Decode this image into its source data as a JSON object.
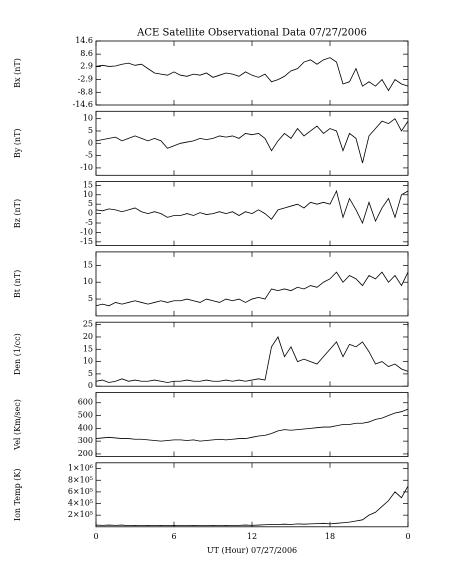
{
  "chart_data": [
    {
      "type": "line",
      "title": "ACE Satellite Observational Data   07/27/2006",
      "ylabel": "Bx (nT)",
      "color": "#000000",
      "x": [
        0,
        0.5,
        1,
        1.5,
        2,
        2.5,
        3,
        3.5,
        4,
        4.5,
        5,
        5.5,
        6,
        6.5,
        7,
        7.5,
        8,
        8.5,
        9,
        9.5,
        10,
        10.5,
        11,
        11.5,
        12,
        12.5,
        13,
        13.5,
        14,
        14.5,
        15,
        15.5,
        16,
        16.5,
        17,
        17.5,
        18,
        18.5,
        19,
        19.5,
        20,
        20.5,
        21,
        21.5,
        22,
        22.5,
        23,
        23.5,
        24
      ],
      "values": [
        3,
        3.5,
        3,
        3.2,
        4,
        4.5,
        3.5,
        4,
        2,
        0,
        -0.5,
        -1,
        0.5,
        -1,
        -1.5,
        -0.5,
        -1,
        0,
        -2,
        -1,
        0,
        -0.5,
        -1.5,
        0.5,
        -1,
        -2,
        -0.5,
        -4,
        -3,
        -1.5,
        1,
        2,
        5,
        6,
        4,
        6,
        7,
        5,
        -5,
        -4,
        2,
        -6,
        -4,
        -6,
        -3,
        -8,
        -3,
        -5,
        -6
      ],
      "ylim": [
        -14.6,
        14.6
      ],
      "yticks": [
        -14.6,
        -8.8,
        -2.9,
        2.9,
        8.6,
        14.6
      ]
    },
    {
      "type": "line",
      "ylabel": "By (nT)",
      "color": "#000000",
      "x": [
        0,
        0.5,
        1,
        1.5,
        2,
        2.5,
        3,
        3.5,
        4,
        4.5,
        5,
        5.5,
        6,
        6.5,
        7,
        7.5,
        8,
        8.5,
        9,
        9.5,
        10,
        10.5,
        11,
        11.5,
        12,
        12.5,
        13,
        13.5,
        14,
        14.5,
        15,
        15.5,
        16,
        16.5,
        17,
        17.5,
        18,
        18.5,
        19,
        19.5,
        20,
        20.5,
        21,
        21.5,
        22,
        22.5,
        23,
        23.5,
        24
      ],
      "values": [
        1,
        1.5,
        2,
        2.5,
        1,
        2,
        3,
        2,
        1,
        2,
        1,
        -2,
        -1,
        0,
        0.5,
        1,
        2,
        1.5,
        2,
        3,
        2.5,
        3,
        2,
        4,
        3.5,
        4,
        2,
        -3,
        1,
        4,
        2,
        6,
        3,
        5,
        7,
        4,
        6,
        5,
        -3,
        4,
        2,
        -8,
        3,
        6,
        9,
        8,
        10,
        5,
        9
      ],
      "ylim": [
        -13,
        13
      ],
      "yticks": [
        -10,
        -5,
        0,
        5,
        10
      ]
    },
    {
      "type": "line",
      "ylabel": "Bz (nT)",
      "color": "#000000",
      "x": [
        0,
        0.5,
        1,
        1.5,
        2,
        2.5,
        3,
        3.5,
        4,
        4.5,
        5,
        5.5,
        6,
        6.5,
        7,
        7.5,
        8,
        8.5,
        9,
        9.5,
        10,
        10.5,
        11,
        11.5,
        12,
        12.5,
        13,
        13.5,
        14,
        14.5,
        15,
        15.5,
        16,
        16.5,
        17,
        17.5,
        18,
        18.5,
        19,
        19.5,
        20,
        20.5,
        21,
        21.5,
        22,
        22.5,
        23,
        23.5,
        24
      ],
      "values": [
        2,
        1.5,
        2.5,
        2,
        1,
        2,
        3,
        1,
        0,
        1,
        0,
        -2,
        -1,
        -1,
        0,
        -1,
        0.5,
        -0.5,
        0,
        1,
        0,
        1,
        -1,
        1,
        0,
        2,
        0,
        -3,
        2,
        3,
        4,
        5,
        3,
        6,
        5,
        6,
        5,
        12,
        -2,
        8,
        2,
        -5,
        6,
        -4,
        3,
        8,
        -2,
        10,
        12
      ],
      "ylim": [
        -17,
        17
      ],
      "yticks": [
        -15,
        -10,
        -5,
        0,
        5,
        10,
        15
      ]
    },
    {
      "type": "line",
      "ylabel": "Bt (nT)",
      "color": "#000000",
      "x": [
        0,
        0.5,
        1,
        1.5,
        2,
        2.5,
        3,
        3.5,
        4,
        4.5,
        5,
        5.5,
        6,
        6.5,
        7,
        7.5,
        8,
        8.5,
        9,
        9.5,
        10,
        10.5,
        11,
        11.5,
        12,
        12.5,
        13,
        13.5,
        14,
        14.5,
        15,
        15.5,
        16,
        16.5,
        17,
        17.5,
        18,
        18.5,
        19,
        19.5,
        20,
        20.5,
        21,
        21.5,
        22,
        22.5,
        23,
        23.5,
        24
      ],
      "values": [
        3,
        3.5,
        3,
        4,
        3.5,
        4,
        4.5,
        4,
        3.5,
        4,
        4.5,
        4,
        4.5,
        4.5,
        5,
        4.5,
        4,
        5,
        4.5,
        4,
        5,
        4.5,
        5,
        4,
        5,
        5.5,
        5,
        8,
        7.5,
        8,
        7.5,
        8.5,
        8,
        9,
        8.5,
        10,
        11,
        13,
        10,
        12,
        11,
        9,
        12,
        11,
        13,
        10,
        12,
        9,
        13
      ],
      "ylim": [
        0,
        19
      ],
      "yticks": [
        5,
        10,
        15
      ]
    },
    {
      "type": "line",
      "ylabel": "Den (1/cc)",
      "color": "#000000",
      "x": [
        0,
        0.5,
        1,
        1.5,
        2,
        2.5,
        3,
        3.5,
        4,
        4.5,
        5,
        5.5,
        6,
        6.5,
        7,
        7.5,
        8,
        8.5,
        9,
        9.5,
        10,
        10.5,
        11,
        11.5,
        12,
        12.5,
        13,
        13.5,
        14,
        14.5,
        15,
        15.5,
        16,
        16.5,
        17,
        17.5,
        18,
        18.5,
        19,
        19.5,
        20,
        20.5,
        21,
        21.5,
        22,
        22.5,
        23,
        23.5,
        24
      ],
      "values": [
        2,
        2.5,
        1.5,
        2,
        3,
        2,
        2.5,
        2,
        2,
        2.5,
        2,
        1.5,
        2,
        2,
        2.5,
        2,
        2,
        2.5,
        2,
        2,
        2.5,
        2,
        2.5,
        2,
        2.5,
        3,
        2.5,
        16,
        20,
        12,
        16,
        10,
        11,
        10,
        9,
        12,
        15,
        18,
        12,
        17,
        16,
        18,
        14,
        9,
        10,
        8,
        9,
        7,
        6
      ],
      "ylim": [
        0,
        26
      ],
      "yticks": [
        0,
        5,
        10,
        15,
        20,
        25
      ]
    },
    {
      "type": "line",
      "ylabel": "Vel (Km/sec)",
      "color": "#000000",
      "x": [
        0,
        0.5,
        1,
        1.5,
        2,
        2.5,
        3,
        3.5,
        4,
        4.5,
        5,
        5.5,
        6,
        6.5,
        7,
        7.5,
        8,
        8.5,
        9,
        9.5,
        10,
        10.5,
        11,
        11.5,
        12,
        12.5,
        13,
        13.5,
        14,
        14.5,
        15,
        15.5,
        16,
        16.5,
        17,
        17.5,
        18,
        18.5,
        19,
        19.5,
        20,
        20.5,
        21,
        21.5,
        22,
        22.5,
        23,
        23.5,
        24
      ],
      "values": [
        320,
        325,
        330,
        325,
        320,
        320,
        315,
        315,
        310,
        305,
        300,
        305,
        310,
        310,
        305,
        310,
        300,
        305,
        310,
        315,
        310,
        315,
        320,
        320,
        330,
        340,
        345,
        360,
        380,
        390,
        385,
        390,
        395,
        400,
        405,
        410,
        410,
        420,
        430,
        430,
        440,
        440,
        450,
        470,
        480,
        500,
        520,
        530,
        550
      ],
      "ylim": [
        180,
        680
      ],
      "yticks": [
        200,
        300,
        400,
        500,
        600
      ]
    },
    {
      "type": "line",
      "ylabel": "Ion Temp (K)",
      "xlabel": "UT (Hour)  07/27/2006",
      "color": "#000000",
      "x": [
        0,
        0.5,
        1,
        1.5,
        2,
        2.5,
        3,
        3.5,
        4,
        4.5,
        5,
        5.5,
        6,
        6.5,
        7,
        7.5,
        8,
        8.5,
        9,
        9.5,
        10,
        10.5,
        11,
        11.5,
        12,
        12.5,
        13,
        13.5,
        14,
        14.5,
        15,
        15.5,
        16,
        16.5,
        17,
        17.5,
        18,
        18.5,
        19,
        19.5,
        20,
        20.5,
        21,
        21.5,
        22,
        22.5,
        23,
        23.5,
        24
      ],
      "values": [
        30000,
        25000,
        30000,
        25000,
        30000,
        20000,
        25000,
        20000,
        25000,
        20000,
        25000,
        20000,
        25000,
        20000,
        20000,
        25000,
        20000,
        20000,
        25000,
        20000,
        25000,
        20000,
        25000,
        30000,
        25000,
        30000,
        35000,
        40000,
        40000,
        45000,
        40000,
        50000,
        45000,
        50000,
        55000,
        60000,
        50000,
        60000,
        70000,
        80000,
        100000,
        120000,
        200000,
        250000,
        350000,
        450000,
        600000,
        500000,
        700000
      ],
      "xlim": [
        0,
        24
      ],
      "xticks": [
        0,
        6,
        12,
        18,
        {
          "value": 24,
          "label": "0"
        }
      ],
      "ylim": [
        0,
        1100000
      ],
      "yticks": [
        {
          "value": 200000,
          "label": "2×10⁵"
        },
        {
          "value": 400000,
          "label": "4×10⁵"
        },
        {
          "value": 600000,
          "label": "6×10⁵"
        },
        {
          "value": 800000,
          "label": "8×10⁵"
        },
        {
          "value": 1000000,
          "label": "1×10⁶"
        }
      ]
    }
  ]
}
